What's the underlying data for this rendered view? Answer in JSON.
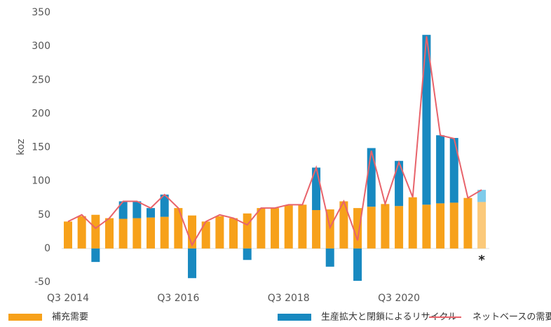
{
  "chart_data": {
    "type": "bar_line",
    "ylabel": "koz",
    "categories": [
      "Q3 2014",
      null,
      null,
      null,
      null,
      null,
      null,
      null,
      "Q3 2016",
      null,
      null,
      null,
      null,
      null,
      null,
      null,
      "Q3 2018",
      null,
      null,
      null,
      null,
      null,
      null,
      null,
      "Q3 2020",
      null,
      null,
      null,
      null,
      null,
      null
    ],
    "series": [
      {
        "name": "補充需要",
        "kind": "bar",
        "color": "#f7a11a",
        "light_color": "#fbc97a",
        "values": [
          40,
          48,
          50,
          45,
          44,
          45,
          46,
          47,
          60,
          49,
          40,
          48,
          45,
          52,
          60,
          60,
          64,
          65,
          57,
          58,
          70,
          60,
          62,
          66,
          63,
          76,
          65,
          67,
          68,
          75,
          69
        ]
      },
      {
        "name": "生産拡大と閉鎖によるリサイクル",
        "kind": "bar",
        "color": "#1889c0",
        "light_color": "#7fcbea",
        "values": [
          0,
          0,
          -20,
          0,
          26,
          25,
          14,
          33,
          0,
          -44,
          0,
          0,
          0,
          -17,
          0,
          0,
          0,
          0,
          63,
          -27,
          0,
          -48,
          87,
          0,
          67,
          0,
          252,
          101,
          96,
          0,
          18
        ]
      },
      {
        "name": "ネットベースの需要",
        "kind": "line",
        "color": "#e8636b",
        "values": [
          40,
          50,
          30,
          45,
          70,
          70,
          60,
          80,
          60,
          5,
          40,
          50,
          45,
          35,
          60,
          60,
          65,
          65,
          120,
          31,
          70,
          12,
          145,
          66,
          128,
          76,
          315,
          168,
          163,
          75,
          87
        ]
      }
    ],
    "light_index": 30,
    "annotation": "*",
    "ylim": [
      -50,
      350
    ],
    "yticks": [
      -50,
      0,
      50,
      100,
      150,
      200,
      250,
      300,
      350
    ],
    "grid": false
  }
}
